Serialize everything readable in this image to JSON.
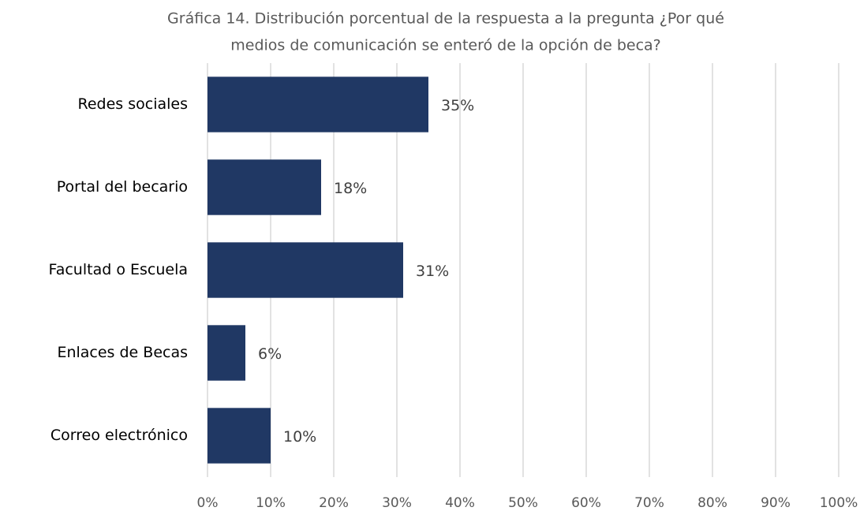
{
  "chart_data": {
    "type": "hbar",
    "title": [
      "Gráfica 14. Distribución porcentual de la respuesta a la pregunta ¿Por qué",
      "medios de comunicación se enteró de la opción de beca?"
    ],
    "categories": [
      "Redes sociales",
      "Portal del becario",
      "Facultad o Escuela",
      "Enlaces de Becas",
      "Correo electrónico"
    ],
    "values": [
      35,
      18,
      31,
      6,
      10
    ],
    "value_labels": [
      "35%",
      "18%",
      "31%",
      "6%",
      "10%"
    ],
    "color": "#203864",
    "xlim": [
      0,
      100
    ],
    "xticks": [
      {
        "value": 0,
        "label": "0%"
      },
      {
        "value": 10,
        "label": "10%"
      },
      {
        "value": 20,
        "label": "20%"
      },
      {
        "value": 30,
        "label": "30%"
      },
      {
        "value": 40,
        "label": "40%"
      },
      {
        "value": 50,
        "label": "50%"
      },
      {
        "value": 60,
        "label": "60%"
      },
      {
        "value": 70,
        "label": "70%"
      },
      {
        "value": 80,
        "label": "80%"
      },
      {
        "value": 90,
        "label": "90%"
      },
      {
        "value": 100,
        "label": "100%"
      }
    ],
    "grid": true
  }
}
